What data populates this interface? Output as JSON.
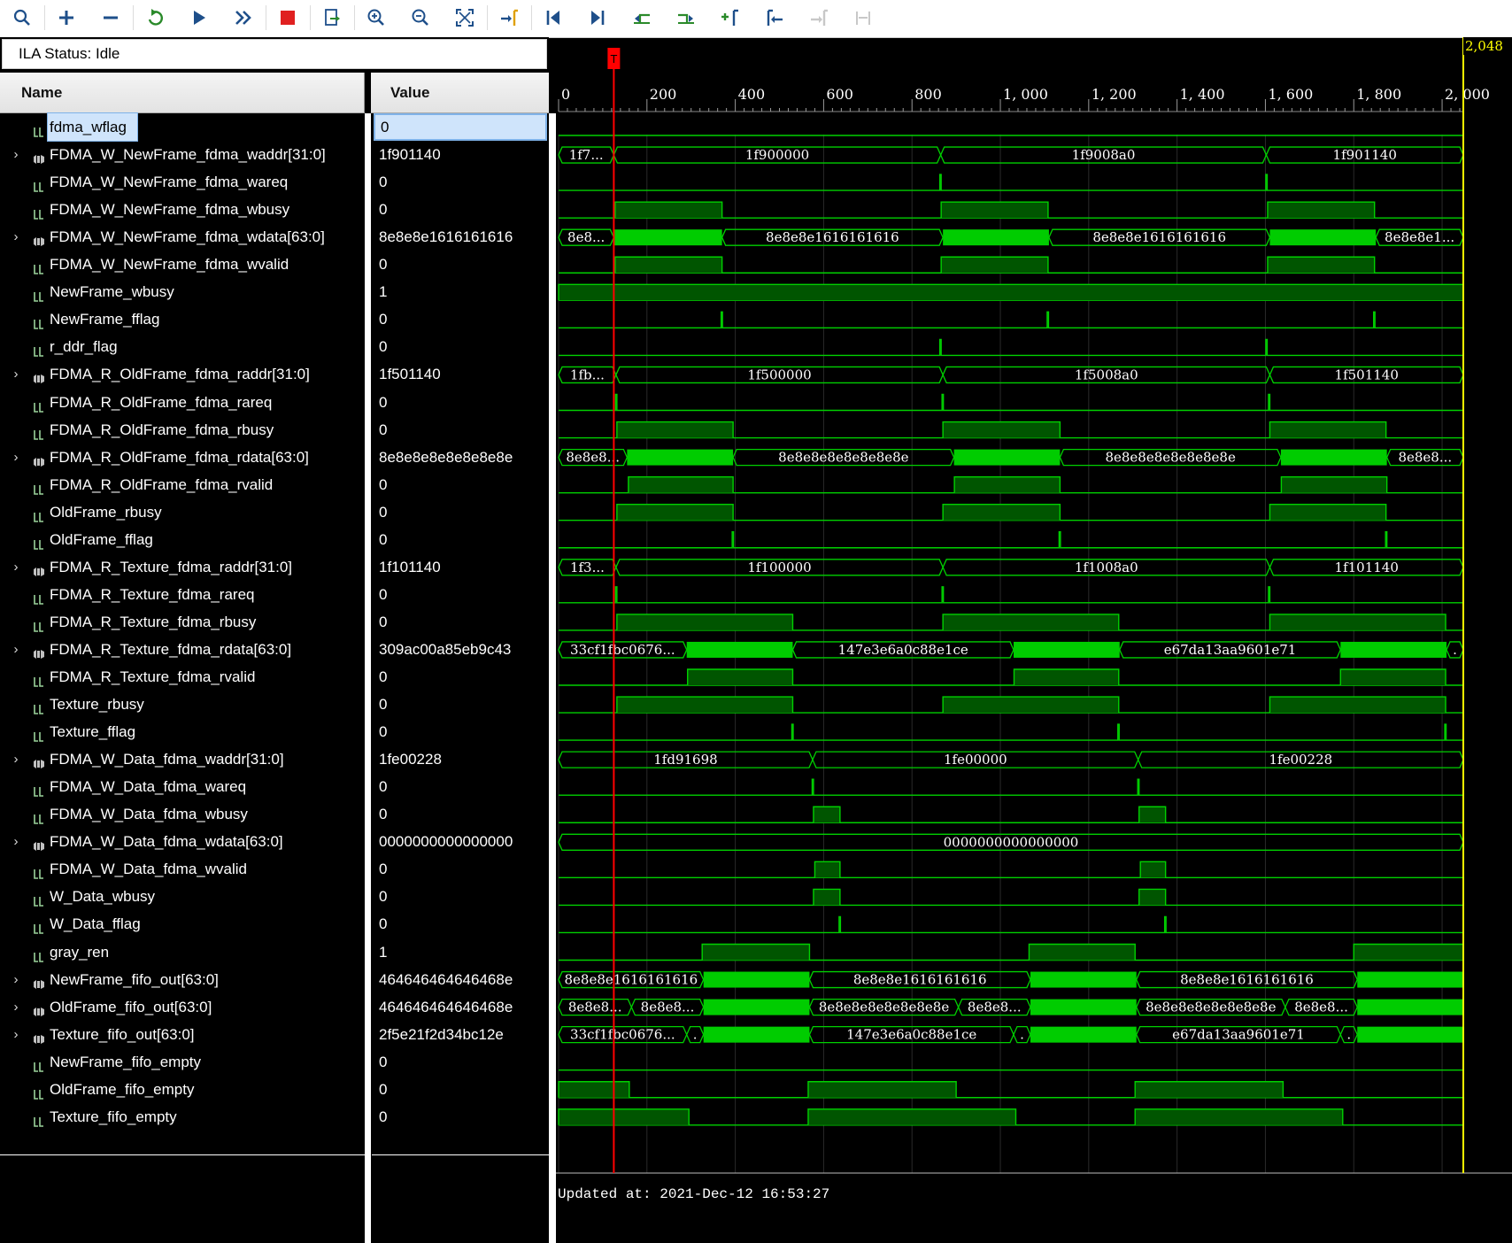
{
  "toolbar": {
    "buttons": [
      {
        "name": "search-icon",
        "glyph": "search",
        "x": 8
      },
      {
        "name": "add-icon",
        "glyph": "plus",
        "x": 58
      },
      {
        "name": "remove-icon",
        "glyph": "minus",
        "x": 108
      },
      {
        "name": "run-trigger-immediate-icon",
        "glyph": "refresh",
        "x": 158
      },
      {
        "name": "run-trigger-icon",
        "glyph": "play",
        "x": 208
      },
      {
        "name": "run-continuous-icon",
        "glyph": "ffwd",
        "x": 258
      },
      {
        "name": "stop-icon",
        "glyph": "stop",
        "x": 308
      },
      {
        "name": "export-icon",
        "glyph": "export",
        "x": 358
      },
      {
        "name": "zoom-in-icon",
        "glyph": "zoomin",
        "x": 408
      },
      {
        "name": "zoom-out-icon",
        "glyph": "zoomout",
        "x": 458
      },
      {
        "name": "zoom-fit-icon",
        "glyph": "fit",
        "x": 508
      },
      {
        "name": "go-to-cursor-icon",
        "glyph": "cursor",
        "x": 558
      },
      {
        "name": "go-to-time-zero-icon",
        "glyph": "first",
        "x": 608
      },
      {
        "name": "go-to-last-time-icon",
        "glyph": "last",
        "x": 658
      },
      {
        "name": "previous-transition-icon",
        "glyph": "prevtr",
        "x": 708
      },
      {
        "name": "next-transition-icon",
        "glyph": "nexttr",
        "x": 758
      },
      {
        "name": "add-marker-icon",
        "glyph": "addmark",
        "x": 808
      },
      {
        "name": "previous-marker-icon",
        "glyph": "prevmark",
        "x": 858
      },
      {
        "name": "next-marker-icon",
        "glyph": "nextmark",
        "x": 908
      },
      {
        "name": "swap-cursors-icon",
        "glyph": "swap",
        "x": 958
      }
    ]
  },
  "status": {
    "label": "ILA Status:",
    "value": "Idle"
  },
  "headers": {
    "name": "Name",
    "value": "Value"
  },
  "signals": [
    {
      "name": "fdma_wflag",
      "value": "0",
      "bus": false,
      "selected": true
    },
    {
      "name": "FDMA_W_NewFrame_fdma_waddr[31:0]",
      "value": "1f901140",
      "bus": true
    },
    {
      "name": "FDMA_W_NewFrame_fdma_wareq",
      "value": "0",
      "bus": false
    },
    {
      "name": "FDMA_W_NewFrame_fdma_wbusy",
      "value": "0",
      "bus": false
    },
    {
      "name": "FDMA_W_NewFrame_fdma_wdata[63:0]",
      "value": "8e8e8e1616161616",
      "bus": true
    },
    {
      "name": "FDMA_W_NewFrame_fdma_wvalid",
      "value": "0",
      "bus": false
    },
    {
      "name": "NewFrame_wbusy",
      "value": "1",
      "bus": false
    },
    {
      "name": "NewFrame_fflag",
      "value": "0",
      "bus": false
    },
    {
      "name": "r_ddr_flag",
      "value": "0",
      "bus": false
    },
    {
      "name": "FDMA_R_OldFrame_fdma_raddr[31:0]",
      "value": "1f501140",
      "bus": true
    },
    {
      "name": "FDMA_R_OldFrame_fdma_rareq",
      "value": "0",
      "bus": false
    },
    {
      "name": "FDMA_R_OldFrame_fdma_rbusy",
      "value": "0",
      "bus": false
    },
    {
      "name": "FDMA_R_OldFrame_fdma_rdata[63:0]",
      "value": "8e8e8e8e8e8e8e8e",
      "bus": true
    },
    {
      "name": "FDMA_R_OldFrame_fdma_rvalid",
      "value": "0",
      "bus": false
    },
    {
      "name": "OldFrame_rbusy",
      "value": "0",
      "bus": false
    },
    {
      "name": "OldFrame_fflag",
      "value": "0",
      "bus": false
    },
    {
      "name": "FDMA_R_Texture_fdma_raddr[31:0]",
      "value": "1f101140",
      "bus": true
    },
    {
      "name": "FDMA_R_Texture_fdma_rareq",
      "value": "0",
      "bus": false
    },
    {
      "name": "FDMA_R_Texture_fdma_rbusy",
      "value": "0",
      "bus": false
    },
    {
      "name": "FDMA_R_Texture_fdma_rdata[63:0]",
      "value": "309ac00a85eb9c43",
      "bus": true
    },
    {
      "name": "FDMA_R_Texture_fdma_rvalid",
      "value": "0",
      "bus": false
    },
    {
      "name": "Texture_rbusy",
      "value": "0",
      "bus": false
    },
    {
      "name": "Texture_fflag",
      "value": "0",
      "bus": false
    },
    {
      "name": "FDMA_W_Data_fdma_waddr[31:0]",
      "value": "1fe00228",
      "bus": true
    },
    {
      "name": "FDMA_W_Data_fdma_wareq",
      "value": "0",
      "bus": false
    },
    {
      "name": "FDMA_W_Data_fdma_wbusy",
      "value": "0",
      "bus": false
    },
    {
      "name": "FDMA_W_Data_fdma_wdata[63:0]",
      "value": "0000000000000000",
      "bus": true
    },
    {
      "name": "FDMA_W_Data_fdma_wvalid",
      "value": "0",
      "bus": false
    },
    {
      "name": "W_Data_wbusy",
      "value": "0",
      "bus": false
    },
    {
      "name": "W_Data_fflag",
      "value": "0",
      "bus": false
    },
    {
      "name": "gray_ren",
      "value": "1",
      "bus": false
    },
    {
      "name": "NewFrame_fifo_out[63:0]",
      "value": "464646464646468e",
      "bus": true
    },
    {
      "name": "OldFrame_fifo_out[63:0]",
      "value": "464646464646468e",
      "bus": true
    },
    {
      "name": "Texture_fifo_out[63:0]",
      "value": "2f5e21f2d34bc12e",
      "bus": true
    },
    {
      "name": "NewFrame_fifo_empty",
      "value": "0",
      "bus": false
    },
    {
      "name": "OldFrame_fifo_empty",
      "value": "0",
      "bus": false
    },
    {
      "name": "Texture_fifo_empty",
      "value": "0",
      "bus": false
    }
  ],
  "timeline": {
    "ticks": [
      "0",
      "200",
      "400",
      "600",
      "800",
      "1, 000",
      "1, 200",
      "1, 400",
      "1, 600",
      "1, 800",
      "2, 000"
    ],
    "tick_values": [
      0,
      200,
      400,
      600,
      800,
      1000,
      1200,
      1400,
      1600,
      1800,
      2000
    ],
    "range": [
      0,
      2048
    ],
    "trigger_label": "T",
    "trigger_at": 125,
    "cursor_label": "2,048",
    "cursor_at": 2048
  },
  "colors": {
    "wave": "#00d000",
    "busfill": "#00cc00",
    "high": "#005500",
    "trigger": "#ff0000",
    "cursor": "#ffff00",
    "grid": "#2a2a2a"
  },
  "waves": [
    {
      "type": "bit",
      "edges": [],
      "init": 0
    },
    {
      "type": "bus",
      "segs": [
        [
          0,
          125,
          "1f7..."
        ],
        [
          125,
          865,
          "1f900000"
        ],
        [
          865,
          1602,
          "1f9008a0"
        ],
        [
          1602,
          2048,
          "1f901140"
        ]
      ]
    },
    {
      "type": "bit",
      "pulses": [
        [
          863,
          866
        ],
        [
          1601,
          1604
        ]
      ]
    },
    {
      "type": "bit",
      "pulses": [
        [
          128,
          370
        ],
        [
          866,
          1108
        ],
        [
          1605,
          1847
        ]
      ]
    },
    {
      "type": "bus",
      "segs": [
        [
          0,
          125,
          "8e8..."
        ],
        [
          125,
          370,
          "*"
        ],
        [
          370,
          870,
          "8e8e8e1616161616"
        ],
        [
          870,
          1110,
          "*"
        ],
        [
          1110,
          1610,
          "8e8e8e1616161616"
        ],
        [
          1610,
          1850,
          "*"
        ],
        [
          1850,
          2048,
          "8e8e8e1..."
        ]
      ]
    },
    {
      "type": "bit",
      "pulses": [
        [
          128,
          370
        ],
        [
          866,
          1108
        ],
        [
          1605,
          1847
        ]
      ]
    },
    {
      "type": "bit",
      "pulses": [
        [
          0,
          2048
        ]
      ]
    },
    {
      "type": "bit",
      "pulses": [
        [
          368,
          371
        ],
        [
          1106,
          1109
        ],
        [
          1845,
          1848
        ]
      ]
    },
    {
      "type": "bit",
      "pulses": [
        [
          863,
          866
        ],
        [
          1601,
          1604
        ]
      ]
    },
    {
      "type": "bus",
      "segs": [
        [
          0,
          130,
          "1fb..."
        ],
        [
          130,
          870,
          "1f500000"
        ],
        [
          870,
          1610,
          "1f5008a0"
        ],
        [
          1610,
          2048,
          "1f501140"
        ]
      ]
    },
    {
      "type": "bit",
      "pulses": [
        [
          129,
          132
        ],
        [
          868,
          871
        ],
        [
          1607,
          1610
        ]
      ]
    },
    {
      "type": "bit",
      "pulses": [
        [
          132,
          395
        ],
        [
          870,
          1135
        ],
        [
          1610,
          1873
        ]
      ]
    },
    {
      "type": "bus",
      "segs": [
        [
          0,
          155,
          "8e8e8..."
        ],
        [
          155,
          395,
          "*"
        ],
        [
          395,
          895,
          "8e8e8e8e8e8e8e8e"
        ],
        [
          895,
          1135,
          "*"
        ],
        [
          1135,
          1635,
          "8e8e8e8e8e8e8e8e"
        ],
        [
          1635,
          1875,
          "*"
        ],
        [
          1875,
          2048,
          "8e8e8..."
        ]
      ]
    },
    {
      "type": "bit",
      "pulses": [
        [
          158,
          395
        ],
        [
          896,
          1135
        ],
        [
          1636,
          1875
        ]
      ]
    },
    {
      "type": "bit",
      "pulses": [
        [
          132,
          395
        ],
        [
          870,
          1135
        ],
        [
          1610,
          1873
        ]
      ]
    },
    {
      "type": "bit",
      "pulses": [
        [
          393,
          396
        ],
        [
          1133,
          1136
        ],
        [
          1872,
          1875
        ]
      ]
    },
    {
      "type": "bus",
      "segs": [
        [
          0,
          130,
          "1f3..."
        ],
        [
          130,
          870,
          "1f100000"
        ],
        [
          870,
          1610,
          "1f1008a0"
        ],
        [
          1610,
          2048,
          "1f101140"
        ]
      ]
    },
    {
      "type": "bit",
      "pulses": [
        [
          129,
          132
        ],
        [
          868,
          871
        ],
        [
          1607,
          1610
        ]
      ]
    },
    {
      "type": "bit",
      "pulses": [
        [
          132,
          530
        ],
        [
          870,
          1268
        ],
        [
          1610,
          2008
        ]
      ]
    },
    {
      "type": "bus",
      "segs": [
        [
          0,
          290,
          "33cf1fbc0676..."
        ],
        [
          290,
          530,
          "*"
        ],
        [
          530,
          1030,
          "147e3e6a0c88e1ce"
        ],
        [
          1030,
          1270,
          "*"
        ],
        [
          1270,
          1770,
          "e67da13aa9601e71"
        ],
        [
          1770,
          2010,
          "*"
        ],
        [
          2010,
          2048,
          "."
        ]
      ]
    },
    {
      "type": "bit",
      "pulses": [
        [
          292,
          530
        ],
        [
          1031,
          1268
        ],
        [
          1770,
          2008
        ]
      ]
    },
    {
      "type": "bit",
      "pulses": [
        [
          132,
          530
        ],
        [
          870,
          1268
        ],
        [
          1610,
          2008
        ]
      ]
    },
    {
      "type": "bit",
      "pulses": [
        [
          528,
          531
        ],
        [
          1266,
          1269
        ],
        [
          2006,
          2009
        ]
      ]
    },
    {
      "type": "bus",
      "segs": [
        [
          0,
          575,
          "1fd91698"
        ],
        [
          575,
          1312,
          "1fe00000"
        ],
        [
          1312,
          2048,
          "1fe00228"
        ]
      ]
    },
    {
      "type": "bit",
      "pulses": [
        [
          574,
          577
        ],
        [
          1311,
          1314
        ]
      ]
    },
    {
      "type": "bit",
      "pulses": [
        [
          577,
          637
        ],
        [
          1314,
          1374
        ]
      ]
    },
    {
      "type": "bus",
      "segs": [
        [
          0,
          2048,
          "0000000000000000"
        ]
      ]
    },
    {
      "type": "bit",
      "pulses": [
        [
          580,
          637
        ],
        [
          1317,
          1374
        ]
      ]
    },
    {
      "type": "bit",
      "pulses": [
        [
          577,
          637
        ],
        [
          1314,
          1374
        ]
      ]
    },
    {
      "type": "bit",
      "pulses": [
        [
          635,
          638
        ],
        [
          1372,
          1375
        ]
      ]
    },
    {
      "type": "bit",
      "pulses": [
        [
          325,
          568
        ],
        [
          1065,
          1305
        ],
        [
          1800,
          2048
        ]
      ]
    },
    {
      "type": "bus",
      "segs": [
        [
          0,
          328,
          "8e8e8e1616161616"
        ],
        [
          328,
          568,
          "*"
        ],
        [
          568,
          1068,
          "8e8e8e1616161616"
        ],
        [
          1068,
          1308,
          "*"
        ],
        [
          1308,
          1808,
          "8e8e8e1616161616"
        ],
        [
          1808,
          2048,
          "*"
        ]
      ]
    },
    {
      "type": "bus",
      "segs": [
        [
          0,
          165,
          "8e8e8..."
        ],
        [
          165,
          328,
          "8e8e8..."
        ],
        [
          328,
          568,
          "*"
        ],
        [
          568,
          905,
          "8e8e8e8e8e8e8e8e"
        ],
        [
          905,
          1068,
          "8e8e8..."
        ],
        [
          1068,
          1308,
          "*"
        ],
        [
          1308,
          1645,
          "8e8e8e8e8e8e8e8e"
        ],
        [
          1645,
          1808,
          "8e8e8..."
        ],
        [
          1808,
          2048,
          "*"
        ]
      ]
    },
    {
      "type": "bus",
      "segs": [
        [
          0,
          290,
          "33cf1fbc0676..."
        ],
        [
          290,
          328,
          "."
        ],
        [
          328,
          568,
          "*"
        ],
        [
          568,
          1030,
          "147e3e6a0c88e1ce"
        ],
        [
          1030,
          1068,
          "."
        ],
        [
          1068,
          1308,
          "*"
        ],
        [
          1308,
          1770,
          "e67da13aa9601e71"
        ],
        [
          1770,
          1808,
          "."
        ],
        [
          1808,
          2048,
          "*"
        ]
      ]
    },
    {
      "type": "bit",
      "pulses": []
    },
    {
      "type": "bit",
      "pulses": [
        [
          0,
          160
        ],
        [
          565,
          900
        ],
        [
          1305,
          1640
        ]
      ]
    },
    {
      "type": "bit",
      "pulses": [
        [
          0,
          295
        ],
        [
          565,
          1035
        ],
        [
          1305,
          1775
        ]
      ]
    }
  ],
  "footer": {
    "updated": "Updated at: 2021-Dec-12 16:53:27"
  }
}
